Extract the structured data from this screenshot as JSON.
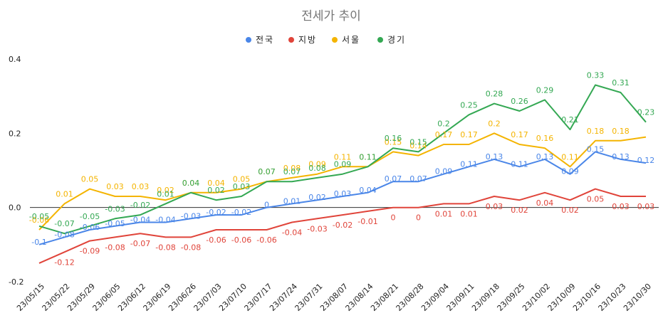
{
  "chart_data": {
    "type": "line",
    "title": "전세가 추이",
    "xlabel": "",
    "ylabel": "",
    "ylim": [
      -0.2,
      0.4
    ],
    "yticks": [
      "-0.2",
      "0.0",
      "0.2",
      "0.4"
    ],
    "ytick_values": [
      -0.2,
      0.0,
      0.2,
      0.4
    ],
    "grid": false,
    "legend_position": "top",
    "categories": [
      "23/05/15",
      "23/05/22",
      "23/05/29",
      "23/06/05",
      "23/06/12",
      "23/06/19",
      "23/06/26",
      "23/07/03",
      "23/07/10",
      "23/07/17",
      "23/07/24",
      "23/07/31",
      "23/08/07",
      "23/08/14",
      "23/08/21",
      "23/08/28",
      "23/09/04",
      "23/09/11",
      "23/09/18",
      "23/09/25",
      "23/10/02",
      "23/10/09",
      "23/10/16",
      "23/10/23",
      "23/10/30"
    ],
    "series": [
      {
        "name": "전국",
        "color": "#4a86e8",
        "values": [
          -0.1,
          -0.08,
          -0.06,
          -0.05,
          -0.04,
          -0.04,
          -0.03,
          -0.02,
          -0.02,
          0,
          0.01,
          0.02,
          0.03,
          0.04,
          0.07,
          0.07,
          0.09,
          0.11,
          0.13,
          0.11,
          0.13,
          0.09,
          0.15,
          0.13,
          0.12
        ],
        "labels": [
          "-0.1",
          "-0.08",
          "-0.06",
          "-0.05",
          "-0.04",
          "-0.04",
          "-0.03",
          "-0.02",
          "-0.02",
          "0",
          "0.01",
          "0.02",
          "0.03",
          "0.04",
          "0.07",
          "0.07",
          "0.09",
          "0.11",
          "0.13",
          "0.11",
          "0.13",
          "0.09",
          "0.15",
          "0.13",
          "0.12"
        ]
      },
      {
        "name": "지방",
        "color": "#e0443a",
        "values": [
          -0.15,
          -0.12,
          -0.09,
          -0.08,
          -0.07,
          -0.08,
          -0.08,
          -0.06,
          -0.06,
          -0.06,
          -0.04,
          -0.03,
          -0.02,
          -0.01,
          0,
          0,
          0.01,
          0.01,
          0.03,
          0.02,
          0.04,
          0.02,
          0.05,
          0.03,
          0.03
        ],
        "labels": [
          "",
          "-0.12",
          "-0.09",
          "-0.08",
          "-0.07",
          "-0.08",
          "-0.08",
          "-0.06",
          "-0.06",
          "-0.06",
          "-0.04",
          "-0.03",
          "-0.02",
          "-0.01",
          "0",
          "0",
          "0.01",
          "0.01",
          "0.03",
          "0.02",
          "0.04",
          "0.02",
          "0.05",
          "0.03",
          "0.03"
        ]
      },
      {
        "name": "서울",
        "color": "#f4b400",
        "values": [
          -0.06,
          0.01,
          0.05,
          0.03,
          0.03,
          0.02,
          0.04,
          0.04,
          0.05,
          0.07,
          0.08,
          0.09,
          0.11,
          0.11,
          0.15,
          0.14,
          0.17,
          0.17,
          0.2,
          0.17,
          0.16,
          0.11,
          0.18,
          0.18,
          0.19
        ],
        "labels": [
          "-0.06",
          "0.01",
          "0.05",
          "0.03",
          "0.03",
          "0.02",
          "0.04",
          "0.04",
          "0.05",
          "0.07",
          "0.08",
          "0.09",
          "0.11",
          "0.11",
          "0.15",
          "0.14",
          "0.17",
          "0.17",
          "0.2",
          "0.17",
          "0.16",
          "0.11",
          "0.18",
          "0.18",
          ""
        ]
      },
      {
        "name": "경기",
        "color": "#34a853",
        "values": [
          -0.05,
          -0.07,
          -0.05,
          -0.03,
          -0.02,
          0.01,
          0.04,
          0.02,
          0.03,
          0.07,
          0.07,
          0.08,
          0.09,
          0.11,
          0.16,
          0.15,
          0.2,
          0.25,
          0.28,
          0.26,
          0.29,
          0.21,
          0.33,
          0.31,
          0.23
        ],
        "labels": [
          "-0.05",
          "-0.07",
          "-0.05",
          "-0.03",
          "-0.02",
          "0.01",
          "0.04",
          "0.02",
          "0.03",
          "0.07",
          "0.07",
          "0.08",
          "0.09",
          "0.11",
          "0.16",
          "0.15",
          "0.2",
          "0.25",
          "0.28",
          "0.26",
          "0.29",
          "0.21",
          "0.33",
          "0.31",
          "0.23"
        ]
      }
    ]
  }
}
